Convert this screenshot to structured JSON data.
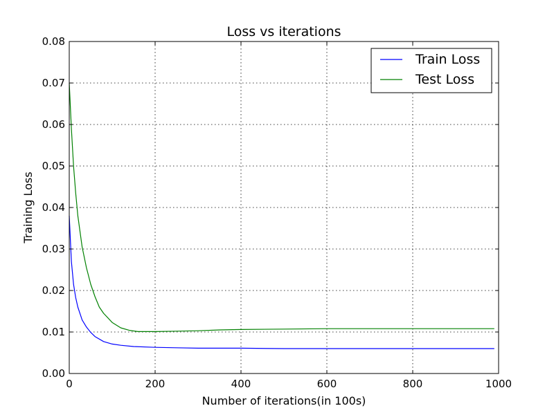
{
  "chart_data": {
    "type": "line",
    "title": "Loss vs iterations",
    "xlabel": "Number of iterations(in 100s)",
    "ylabel": "Training Loss",
    "xlim": [
      0,
      1000
    ],
    "ylim": [
      0,
      0.08
    ],
    "xticks": [
      "0",
      "200",
      "400",
      "600",
      "800",
      "1000"
    ],
    "yticks": [
      "0.00",
      "0.01",
      "0.02",
      "0.03",
      "0.04",
      "0.05",
      "0.06",
      "0.07",
      "0.08"
    ],
    "grid": true,
    "legend_position": "top-right",
    "series": [
      {
        "name": "Train Loss",
        "color": "#0000ff",
        "x": [
          0,
          5,
          10,
          15,
          20,
          30,
          40,
          50,
          60,
          80,
          100,
          120,
          150,
          200,
          250,
          300,
          400,
          500,
          600,
          700,
          800,
          900,
          990
        ],
        "y": [
          0.038,
          0.027,
          0.0215,
          0.0183,
          0.016,
          0.0129,
          0.0112,
          0.0099,
          0.0089,
          0.0077,
          0.0071,
          0.0068,
          0.0065,
          0.0063,
          0.0062,
          0.0061,
          0.0061,
          0.006,
          0.006,
          0.006,
          0.006,
          0.006,
          0.006
        ]
      },
      {
        "name": "Test Loss",
        "color": "#008000",
        "x": [
          0,
          5,
          10,
          15,
          20,
          30,
          40,
          50,
          60,
          70,
          80,
          100,
          120,
          140,
          160,
          180,
          200,
          250,
          300,
          350,
          400,
          500,
          600,
          700,
          800,
          900,
          990
        ],
        "y": [
          0.07,
          0.059,
          0.05,
          0.0435,
          0.038,
          0.0305,
          0.0255,
          0.0215,
          0.0185,
          0.016,
          0.0145,
          0.0123,
          0.011,
          0.0104,
          0.0101,
          0.0101,
          0.0101,
          0.0102,
          0.0103,
          0.0105,
          0.0106,
          0.0107,
          0.0108,
          0.0108,
          0.0108,
          0.0108,
          0.0108
        ]
      }
    ]
  }
}
